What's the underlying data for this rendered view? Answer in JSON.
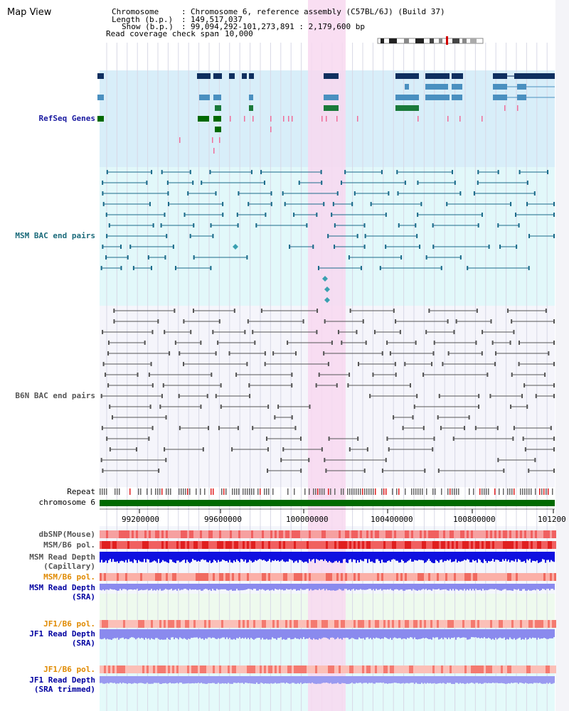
{
  "header": {
    "title": "Map View",
    "chromosome_key": "Chromosome",
    "chromosome_val": "Chromosome 6, reference assembly (C57BL/6J) (Build 37)",
    "length_key": "Length (b.p.)",
    "length_val": "149,517,037",
    "show_key": "Show (b.p.)",
    "show_val": "99,094,292-101,273,891 : 2,179,600 bp",
    "span_key": "Read coverage check span",
    "span_val": "10,000"
  },
  "tracks": {
    "refseq": "RefSeq Genes",
    "msm_bac": "MSM BAC end pairs",
    "b6n_bac": "B6N BAC end pairs",
    "repeat": "Repeat",
    "chromosome": "chromosome 6",
    "dbsnp": "dbSNP(Mouse)",
    "msm_b6_pol_1": "MSM/B6 pol.",
    "msm_depth_cap_1": "MSM Read Depth",
    "msm_depth_cap_2": "(Capillary)",
    "msm_b6_pol_2": "MSM/B6 pol.",
    "msm_depth_sra_1": "MSM Read Depth",
    "msm_depth_sra_2": "(SRA)",
    "jf1_b6_pol_1": "JF1/B6 pol.",
    "jf1_depth_sra_1": "JF1 Read Depth",
    "jf1_depth_sra_2": "(SRA)",
    "jf1_b6_pol_2": "JF1/B6 pol.",
    "jf1_depth_trim_1": "JF1 Read Depth",
    "jf1_depth_trim_2": "(SRA trimmed)"
  },
  "axis": {
    "ticks": [
      "99200000",
      "99600000",
      "100000000",
      "100400000",
      "100800000",
      "101200"
    ]
  },
  "colors": {
    "refseq_bg": "#d8eef9",
    "msm_bg": "#e2f8fa",
    "b6n_bg": "#f5f5fb",
    "highlight": "#f8d8f0",
    "refseq_label": "#1a1aa0",
    "msm_label": "#1a6a7a",
    "b6n_label": "#555555",
    "orange_label": "#e08a00",
    "blue_label": "#0000a0",
    "chrom_green": "#006a00"
  }
}
